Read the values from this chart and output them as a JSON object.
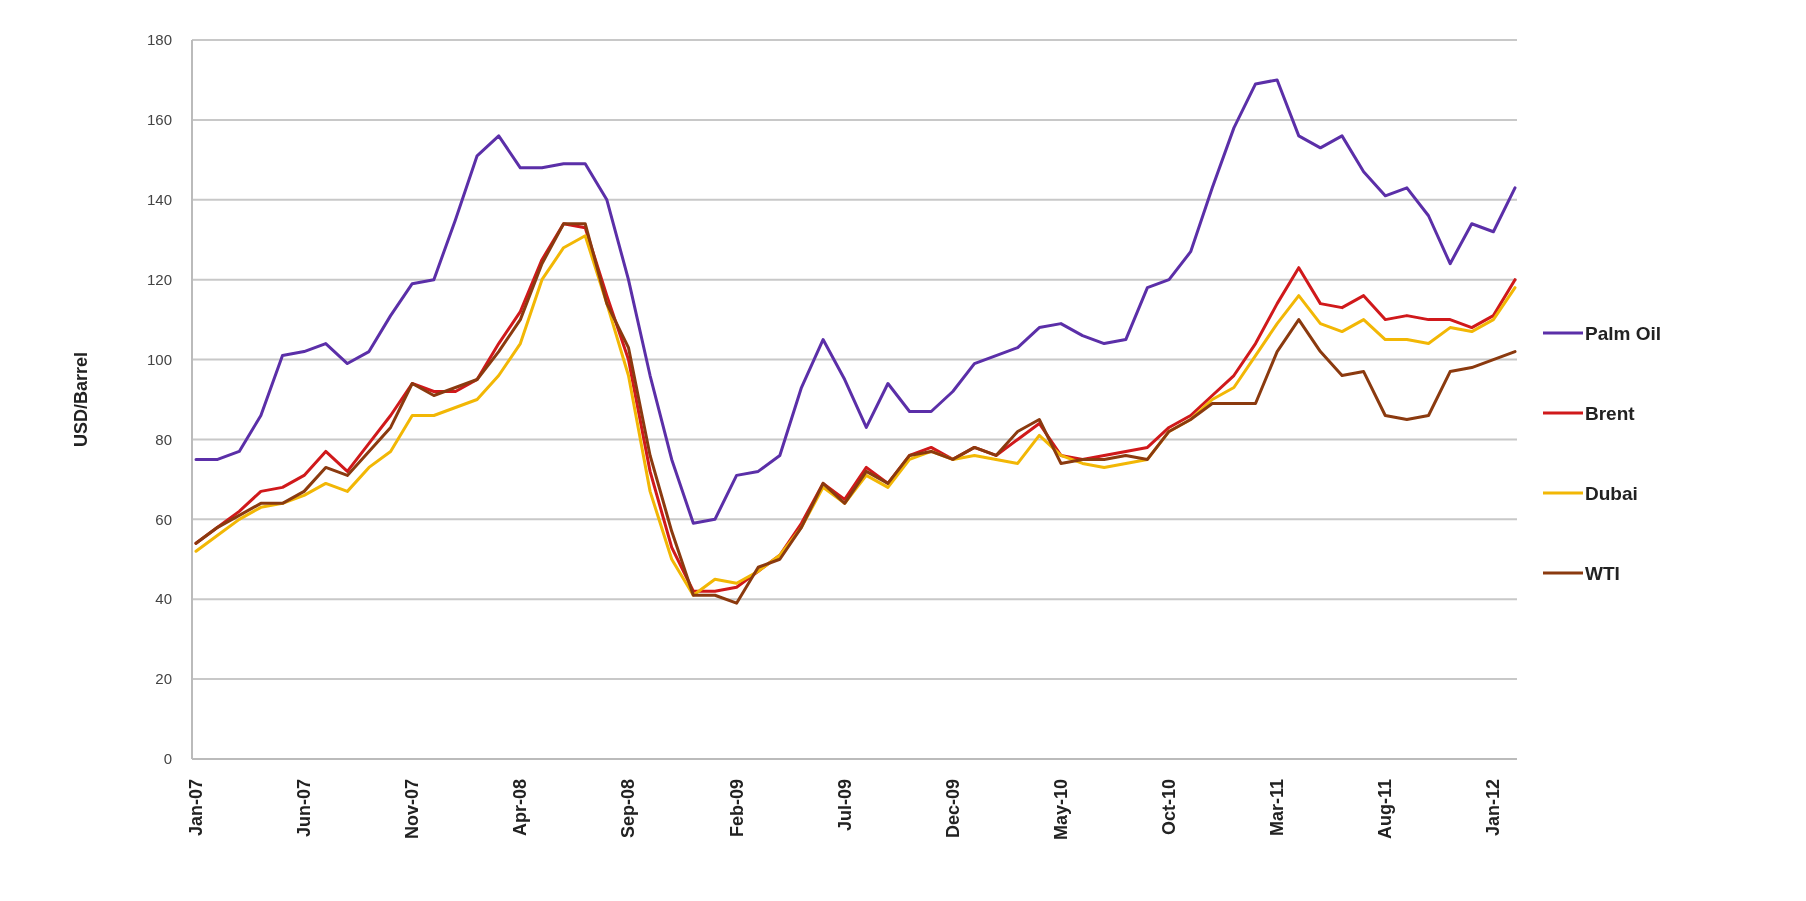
{
  "chart_data": {
    "type": "line",
    "ylabel": "USD/Barrel",
    "categories": [
      "Jan-07",
      null,
      null,
      null,
      null,
      "Jun-07",
      null,
      null,
      null,
      null,
      "Nov-07",
      null,
      null,
      null,
      null,
      "Apr-08",
      null,
      null,
      null,
      null,
      "Sep-08",
      null,
      null,
      null,
      null,
      "Feb-09",
      null,
      null,
      null,
      null,
      "Jul-09",
      null,
      null,
      null,
      null,
      "Dec-09",
      null,
      null,
      null,
      null,
      "May-10",
      null,
      null,
      null,
      null,
      "Oct-10",
      null,
      null,
      null,
      null,
      "Mar-11",
      null,
      null,
      null,
      null,
      "Aug-11",
      null,
      null,
      null,
      null,
      "Jan-12",
      null
    ],
    "ylim": [
      0,
      180
    ],
    "yticks": [
      0,
      20,
      40,
      60,
      80,
      100,
      120,
      140,
      160,
      180
    ],
    "grid": "y",
    "legend": "right",
    "series": [
      {
        "name": "Palm Oil",
        "color": "#5b2fa8",
        "values": [
          75,
          75,
          77,
          86,
          101,
          102,
          104,
          99,
          102,
          111,
          119,
          120,
          135,
          151,
          156,
          148,
          148,
          149,
          149,
          140,
          120,
          96,
          75,
          59,
          60,
          71,
          72,
          76,
          93,
          105,
          95,
          83,
          94,
          87,
          87,
          92,
          99,
          101,
          103,
          108,
          109,
          106,
          104,
          105,
          118,
          120,
          127,
          143,
          158,
          169,
          170,
          156,
          153,
          156,
          147,
          141,
          143,
          136,
          124,
          134,
          132,
          143
        ]
      },
      {
        "name": "Brent",
        "color": "#d0191b",
        "values": [
          54,
          58,
          62,
          67,
          68,
          71,
          77,
          72,
          79,
          86,
          94,
          92,
          92,
          95,
          104,
          112,
          125,
          134,
          133,
          116,
          100,
          72,
          53,
          42,
          42,
          43,
          47,
          51,
          59,
          69,
          65,
          73,
          69,
          76,
          78,
          75,
          78,
          76,
          80,
          84,
          76,
          75,
          76,
          77,
          78,
          83,
          86,
          91,
          96,
          104,
          114,
          123,
          114,
          113,
          116,
          110,
          111,
          110,
          110,
          108,
          111,
          120
        ]
      },
      {
        "name": "Dubai",
        "color": "#f2b705",
        "values": [
          52,
          56,
          60,
          63,
          64,
          66,
          69,
          67,
          73,
          77,
          86,
          86,
          88,
          90,
          96,
          104,
          120,
          128,
          131,
          114,
          96,
          67,
          50,
          41,
          45,
          44,
          47,
          51,
          58,
          68,
          64,
          71,
          68,
          75,
          77,
          75,
          76,
          75,
          74,
          81,
          76,
          74,
          73,
          74,
          75,
          82,
          85,
          90,
          93,
          101,
          109,
          116,
          109,
          107,
          110,
          105,
          105,
          104,
          108,
          107,
          110,
          118
        ]
      },
      {
        "name": "WTI",
        "color": "#8b3a0f",
        "values": [
          54,
          58,
          61,
          64,
          64,
          67,
          73,
          71,
          77,
          83,
          94,
          91,
          93,
          95,
          102,
          110,
          124,
          134,
          134,
          114,
          103,
          76,
          57,
          41,
          41,
          39,
          48,
          50,
          58,
          69,
          64,
          72,
          69,
          76,
          77,
          75,
          78,
          76,
          82,
          85,
          74,
          75,
          75,
          76,
          75,
          82,
          85,
          89,
          89,
          89,
          102,
          110,
          102,
          96,
          97,
          86,
          85,
          86,
          97,
          98,
          100,
          102
        ]
      }
    ]
  }
}
